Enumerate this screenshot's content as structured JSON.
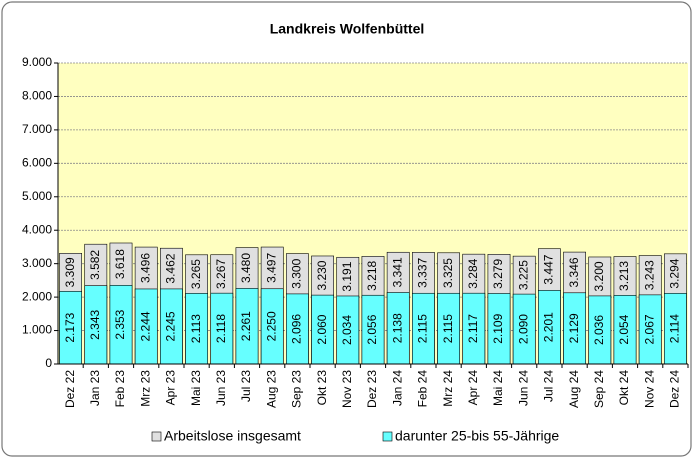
{
  "chart_data": {
    "type": "bar",
    "title": "Landkreis Wolfenbüttel",
    "categories": [
      "Dez 22",
      "Jan 23",
      "Feb 23",
      "Mrz 23",
      "Apr 23",
      "Mai 23",
      "Jun 23",
      "Jul 23",
      "Aug 23",
      "Sep 23",
      "Okt 23",
      "Nov 23",
      "Dez 23",
      "Jan 24",
      "Feb 24",
      "Mrz 24",
      "Apr 24",
      "Mai 24",
      "Jun 24",
      "Jul 24",
      "Aug 24",
      "Sep 24",
      "Okt 24",
      "Nov 24",
      "Dez 24"
    ],
    "series": [
      {
        "name": "Arbeitslose insgesamt",
        "color": "#e0e0e0",
        "values": [
          3309,
          3582,
          3618,
          3496,
          3462,
          3265,
          3267,
          3480,
          3497,
          3300,
          3230,
          3191,
          3218,
          3341,
          3337,
          3325,
          3284,
          3279,
          3225,
          3447,
          3346,
          3200,
          3213,
          3243,
          3294
        ],
        "value_labels": [
          "3.309",
          "3.582",
          "3.618",
          "3.496",
          "3.462",
          "3.265",
          "3.267",
          "3.480",
          "3.497",
          "3.300",
          "3.230",
          "3.191",
          "3.218",
          "3.341",
          "3.337",
          "3.325",
          "3.284",
          "3.279",
          "3.225",
          "3.447",
          "3.346",
          "3.200",
          "3.213",
          "3.243",
          "3.294"
        ]
      },
      {
        "name": "darunter 25-bis 55-Jährige",
        "color": "#66ffff",
        "values": [
          2173,
          2343,
          2353,
          2244,
          2245,
          2113,
          2118,
          2261,
          2250,
          2096,
          2060,
          2034,
          2056,
          2138,
          2115,
          2115,
          2117,
          2109,
          2090,
          2201,
          2129,
          2036,
          2054,
          2067,
          2114
        ],
        "value_labels": [
          "2.173",
          "2.343",
          "2.353",
          "2.244",
          "2.245",
          "2.113",
          "2.118",
          "2.261",
          "2.250",
          "2.096",
          "2.060",
          "2.034",
          "2.056",
          "2.138",
          "2.115",
          "2.115",
          "2.117",
          "2.109",
          "2.090",
          "2.201",
          "2.129",
          "2.036",
          "2.054",
          "2.067",
          "2.114"
        ]
      }
    ],
    "ylim": [
      0,
      9000
    ],
    "yticks": [
      0,
      {
        "value": 1000,
        "label": "1.000"
      },
      {
        "value": 2000,
        "label": "2.000"
      },
      {
        "value": 3000,
        "label": "3.000"
      },
      {
        "value": 4000,
        "label": "4.000"
      },
      {
        "value": 5000,
        "label": "5.000"
      },
      {
        "value": 6000,
        "label": "6.000"
      },
      {
        "value": 7000,
        "label": "7.000"
      },
      {
        "value": 8000,
        "label": "8.000"
      },
      {
        "value": 9000,
        "label": "9.000"
      }
    ],
    "grid": true,
    "legend": "bottom"
  }
}
